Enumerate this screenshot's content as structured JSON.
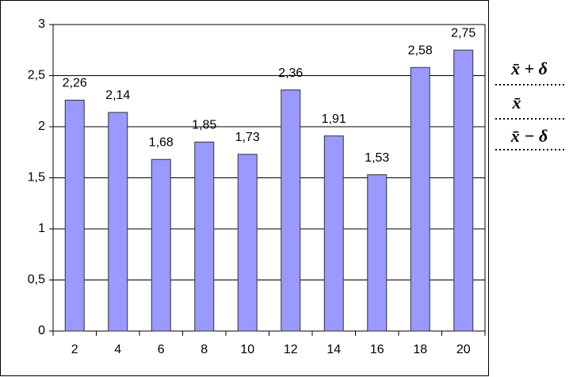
{
  "chart_data": {
    "type": "bar",
    "categories": [
      "2",
      "4",
      "6",
      "8",
      "10",
      "12",
      "14",
      "16",
      "18",
      "20"
    ],
    "values": [
      2.26,
      2.14,
      1.68,
      1.85,
      1.73,
      2.36,
      1.91,
      1.53,
      2.58,
      2.75
    ],
    "value_labels": [
      "2,26",
      "2,14",
      "1,68",
      "1,85",
      "1,73",
      "2,36",
      "1,91",
      "1,53",
      "2,58",
      "2,75"
    ],
    "color": "#9999ff",
    "ylim": [
      0,
      3
    ],
    "yticks": [
      0,
      {
        "value": 0.5,
        "label": "0,5"
      },
      1,
      {
        "value": 1.5,
        "label": "1,5"
      },
      2,
      {
        "value": 2.5,
        "label": "2,5"
      },
      3
    ],
    "grid": true,
    "annotations": [
      "x̄ + δ",
      "x̄",
      "x̄ − δ"
    ]
  }
}
